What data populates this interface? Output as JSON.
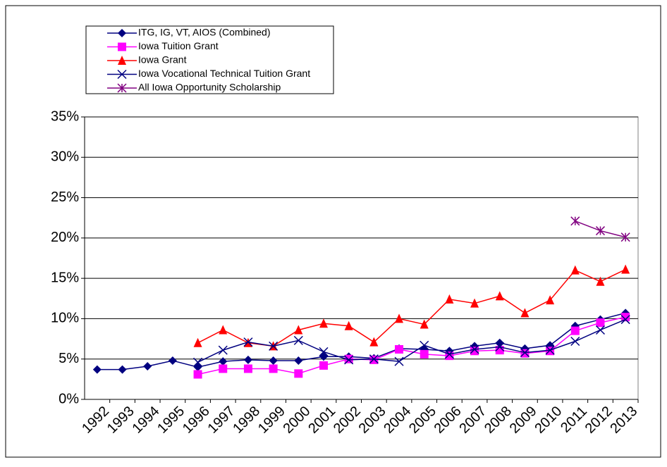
{
  "chart_data": {
    "type": "line",
    "categories": [
      "1992",
      "1993",
      "1994",
      "1995",
      "1996",
      "1997",
      "1998",
      "1999",
      "2000",
      "2001",
      "2002",
      "2003",
      "2004",
      "2005",
      "2006",
      "2007",
      "2008",
      "2009",
      "2010",
      "2011",
      "2012",
      "2013"
    ],
    "series": [
      {
        "name": "ITG, IG, VT, AIOS (Combined)",
        "color": "#000080",
        "marker": "diamond",
        "values": [
          3.7,
          3.7,
          4.1,
          4.8,
          4.0,
          4.7,
          4.9,
          4.8,
          4.8,
          5.3,
          5.3,
          5.1,
          6.3,
          6.2,
          6.0,
          6.6,
          7.0,
          6.3,
          6.7,
          9.1,
          9.9,
          10.7
        ]
      },
      {
        "name": "Iowa Tuition Grant",
        "color": "#ff00ff",
        "marker": "square",
        "values": [
          null,
          null,
          null,
          null,
          3.1,
          3.8,
          3.8,
          3.8,
          3.2,
          4.2,
          5.0,
          4.9,
          6.2,
          5.6,
          5.4,
          6.0,
          6.1,
          5.7,
          6.0,
          8.5,
          9.5,
          10.2
        ]
      },
      {
        "name": "Iowa Grant",
        "color": "#ff0000",
        "marker": "triangle",
        "values": [
          null,
          null,
          null,
          null,
          7.0,
          8.6,
          7.0,
          6.6,
          8.6,
          9.4,
          9.1,
          7.1,
          10.0,
          9.3,
          12.4,
          11.9,
          12.8,
          10.7,
          12.3,
          16.0,
          14.6,
          16.1
        ]
      },
      {
        "name": "Iowa Vocational Technical Tuition Grant",
        "color": "#000080",
        "marker": "x",
        "values": [
          null,
          null,
          null,
          null,
          4.6,
          6.1,
          7.1,
          6.6,
          7.3,
          5.9,
          4.9,
          5.0,
          4.7,
          6.7,
          5.6,
          6.2,
          6.5,
          5.8,
          6.1,
          7.2,
          8.6,
          9.9
        ]
      },
      {
        "name": "All Iowa Opportunity Scholarship",
        "color": "#800080",
        "marker": "star",
        "values": [
          null,
          null,
          null,
          null,
          null,
          null,
          null,
          null,
          null,
          null,
          null,
          null,
          null,
          null,
          null,
          null,
          null,
          null,
          null,
          22.1,
          20.9,
          20.1
        ]
      }
    ],
    "ylim": [
      0,
      35
    ],
    "yticks": [
      {
        "value": 0,
        "label": "0%"
      },
      {
        "value": 5,
        "label": "5%"
      },
      {
        "value": 10,
        "label": "10%"
      },
      {
        "value": 15,
        "label": "15%"
      },
      {
        "value": 20,
        "label": "20%"
      },
      {
        "value": 25,
        "label": "25%"
      },
      {
        "value": 30,
        "label": "30%"
      },
      {
        "value": 35,
        "label": "35%"
      }
    ],
    "grid": true,
    "legend": "top-left"
  }
}
